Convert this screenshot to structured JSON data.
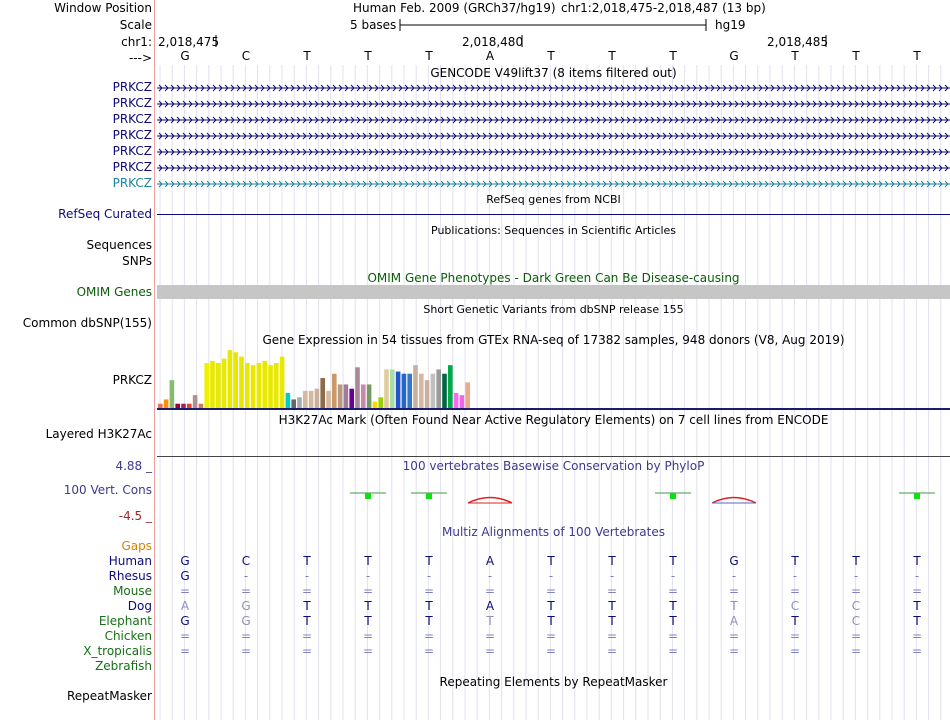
{
  "header": {
    "window_position_label": "Window Position",
    "scale_label": "Scale",
    "chrom_label": "chr1:",
    "arrow_label": "--->",
    "assembly_text": "Human Feb. 2009 (GRCh37/hg19)",
    "position_text": "chr1:2,018,475-2,018,487 (13 bp)",
    "scale_text": "5 bases",
    "scale_db": "hg19",
    "ruler_numbers": [
      "2,018,475",
      "2,018,480",
      "2,018,485"
    ],
    "bases": [
      "G",
      "C",
      "T",
      "T",
      "T",
      "A",
      "T",
      "T",
      "T",
      "G",
      "T",
      "T",
      "T"
    ]
  },
  "tracks": {
    "gencode": {
      "title": "GENCODE V49lift37 (8 items filtered out)",
      "items": [
        "PRKCZ",
        "PRKCZ",
        "PRKCZ",
        "PRKCZ",
        "PRKCZ",
        "PRKCZ",
        "PRKCZ"
      ]
    },
    "refseq": {
      "label": "RefSeq Curated",
      "title": "RefSeq genes from NCBI"
    },
    "sequences": {
      "label": "Sequences",
      "title": "Publications: Sequences in Scientific Articles"
    },
    "snps": {
      "label": "SNPs"
    },
    "omim": {
      "label": "OMIM Genes",
      "title": "OMIM Gene Phenotypes - Dark Green Can Be Disease-causing"
    },
    "dbsnp": {
      "label": "Common dbSNP(155)",
      "title": "Short Genetic Variants from dbSNP release 155"
    },
    "gtex": {
      "label": "PRKCZ",
      "title": "Gene Expression in 54 tissues from GTEx RNA-seq of 17382 samples, 948 donors (V8, Aug 2019)"
    },
    "h3k27ac": {
      "label": "Layered H3K27Ac",
      "title": "H3K27Ac Mark (Often Found Near Active Regulatory Elements) on 7 cell lines from ENCODE"
    },
    "cons": {
      "label": "100 Vert. Cons",
      "title": "100 vertebrates Basewise Conservation by PhyloP",
      "max": "4.88 _",
      "min": "-4.5 _"
    },
    "multiz": {
      "title": "Multiz Alignments of 100 Vertebrates",
      "gaps_label": "Gaps",
      "species": [
        {
          "name": "Human",
          "row": [
            "G",
            "C",
            "T",
            "T",
            "T",
            "A",
            "T",
            "T",
            "T",
            "G",
            "T",
            "T",
            "T"
          ]
        },
        {
          "name": "Rhesus",
          "row": [
            "G",
            "-",
            "-",
            "-",
            "-",
            "-",
            "-",
            "-",
            "-",
            "-",
            "-",
            "-",
            "-"
          ]
        },
        {
          "name": "Mouse",
          "row": [
            "=",
            "=",
            "=",
            "=",
            "=",
            "=",
            "=",
            "=",
            "=",
            "=",
            "=",
            "=",
            "="
          ]
        },
        {
          "name": "Dog",
          "row": [
            "A",
            "G",
            "T",
            "T",
            "T",
            "A",
            "T",
            "T",
            "T",
            "T",
            "C",
            "C",
            "T"
          ]
        },
        {
          "name": "Elephant",
          "row": [
            "G",
            "G",
            "T",
            "T",
            "T",
            "T",
            "T",
            "T",
            "T",
            "A",
            "T",
            "C",
            "T"
          ]
        },
        {
          "name": "Chicken",
          "row": [
            "=",
            "=",
            "=",
            "=",
            "=",
            "=",
            "=",
            "=",
            "=",
            "=",
            "=",
            "=",
            "="
          ]
        },
        {
          "name": "X_tropicalis",
          "row": [
            "=",
            "=",
            "=",
            "=",
            "=",
            "=",
            "=",
            "=",
            "=",
            "=",
            "=",
            "=",
            "="
          ]
        },
        {
          "name": "Zebrafish",
          "row": [
            "",
            "",
            "",
            "",
            "",
            "",
            "",
            "",
            "",
            "",
            "",
            "",
            ""
          ]
        }
      ]
    },
    "repeatmasker": {
      "label": "RepeatMasker",
      "title": "Repeating Elements by RepeatMasker"
    }
  },
  "colors": {
    "gene_blue": "#0c0c78",
    "gene_teal": "#1a85a0",
    "omim_green": "#0a5c0a",
    "gtex_title": "#000000",
    "cons_blue": "#3a3a8c",
    "cons_red": "#9c2a2a",
    "maf_green": "#157015",
    "gaps_orange": "#d98200"
  },
  "chart_data": {
    "type": "bar",
    "title": "Gene Expression in 54 tissues from GTEx RNA-seq of 17382 samples, 948 donors (V8, Aug 2019)",
    "values": [
      2,
      4,
      13,
      2,
      2,
      2,
      6,
      2,
      21,
      22,
      21,
      23,
      27,
      26,
      24,
      21,
      20,
      21,
      22,
      20,
      21,
      24,
      7,
      4,
      5,
      8,
      8,
      9,
      14,
      8,
      16,
      11,
      11,
      9,
      19,
      11,
      11,
      3,
      5,
      18,
      18,
      17,
      16,
      16,
      20,
      16,
      13,
      16,
      18,
      16,
      20,
      7,
      6,
      12
    ],
    "colors": [
      "#ee6f4a",
      "#ff9000",
      "#88bb70",
      "#9a0040",
      "#aa2255",
      "#e8442a",
      "#b09090",
      "#cc7a5a",
      "#f0f000",
      "#e8e800",
      "#e8e800",
      "#e8e800",
      "#e8e800",
      "#e8e800",
      "#e8e800",
      "#e8e800",
      "#e8e800",
      "#e8e800",
      "#e8e800",
      "#e8e800",
      "#e8e800",
      "#e8e800",
      "#00cccc",
      "#666666",
      "#aaaaaa",
      "#d5b8a0",
      "#d5b8a0",
      "#c8b0a0",
      "#8b6b4a",
      "#d5b8a0",
      "#cc9966",
      "#b89a80",
      "#a07a99",
      "#660099",
      "#aa8899",
      "#cc88aa",
      "#779966",
      "#ffd700",
      "#9ad000",
      "#e0cc99",
      "#aaddaa",
      "#2255cc",
      "#2266cc",
      "#3377cc",
      "#c8b0a0",
      "#d5b8a0",
      "#c8b0a0",
      "#c0c0c0",
      "#9a9a9a",
      "#006644",
      "#00aa44",
      "#ff66ff",
      "#ee66ee",
      "#eeaa88"
    ]
  }
}
